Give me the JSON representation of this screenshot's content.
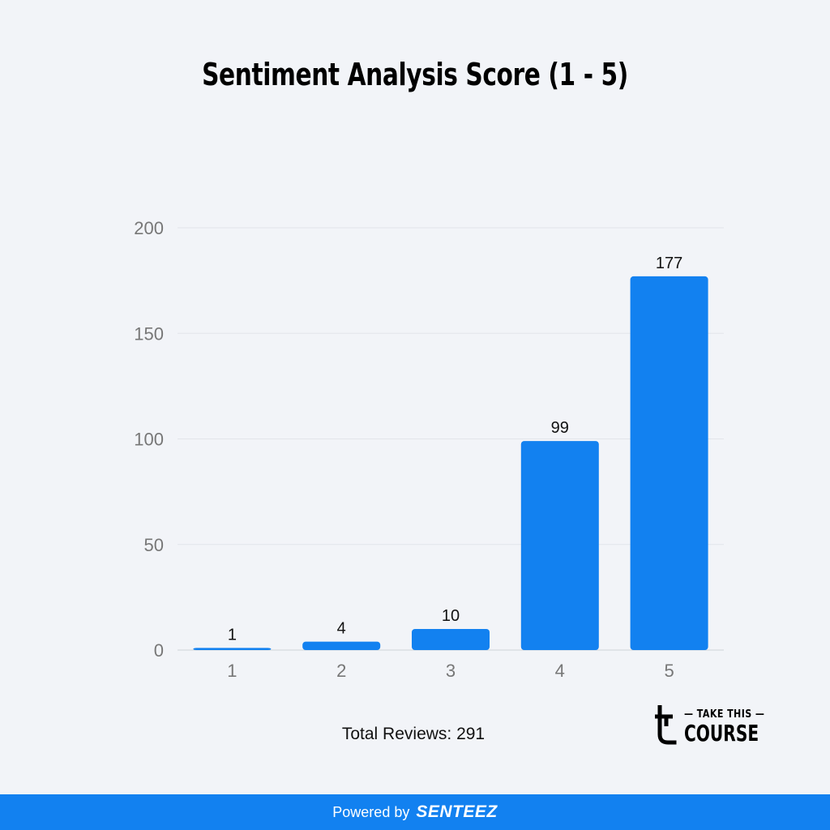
{
  "chart_data": {
    "type": "bar",
    "title": "Sentiment Analysis Score (1 - 5)",
    "categories": [
      "1",
      "2",
      "3",
      "4",
      "5"
    ],
    "values": [
      1,
      4,
      10,
      99,
      177
    ],
    "data_labels": [
      "1",
      "4",
      "10",
      "99",
      "177"
    ],
    "y_ticks": [
      "0",
      "50",
      "100",
      "150",
      "200"
    ],
    "ylim": [
      0,
      200
    ],
    "xlabel": "",
    "ylabel": "",
    "grid": true,
    "bar_color": "#1281f0"
  },
  "summary": {
    "total_reviews_label": "Total Reviews: 291"
  },
  "logo": {
    "top_text": "TAKE THIS",
    "bottom_text": "COURSE",
    "icon": "take-this-course-t-icon"
  },
  "footer": {
    "powered_by": "Powered by",
    "brand": "SENTEEZ",
    "background": "#1281f0"
  }
}
